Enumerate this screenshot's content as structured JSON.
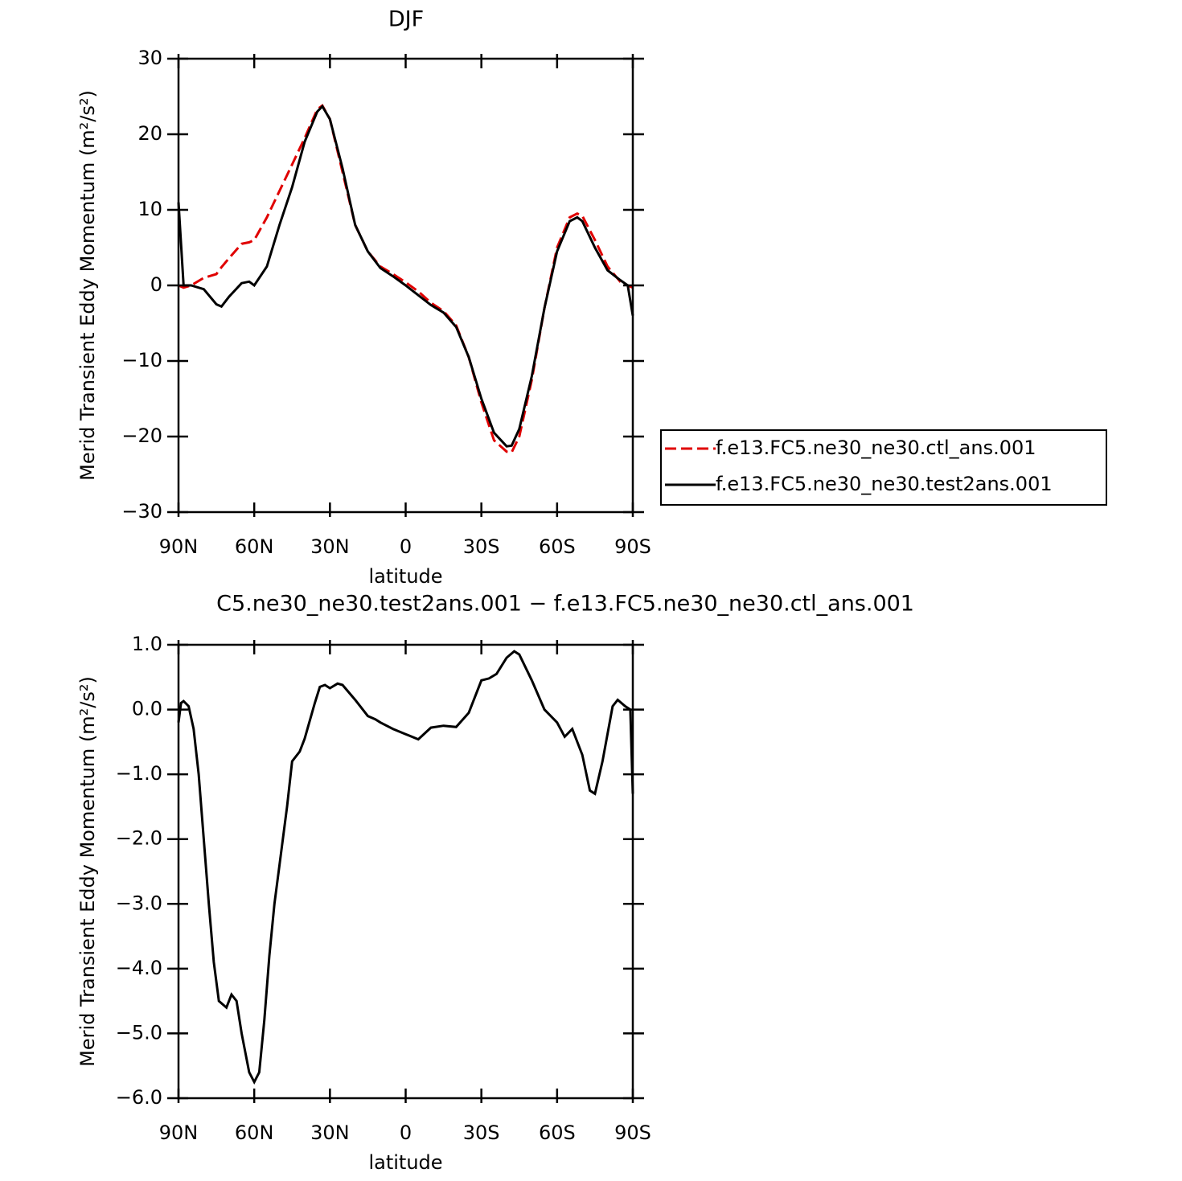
{
  "chart_data": [
    {
      "type": "line",
      "title": "DJF",
      "xlabel": "latitude",
      "ylabel": "Merid Transient Eddy Momentum (m²/s²)",
      "x": [
        90,
        88,
        85,
        80,
        75,
        73,
        70,
        65,
        62,
        60,
        55,
        50,
        45,
        40,
        35,
        33,
        30,
        25,
        20,
        15,
        10,
        5,
        0,
        -5,
        -10,
        -15,
        -20,
        -25,
        -30,
        -35,
        -40,
        -42,
        -45,
        -50,
        -55,
        -60,
        -65,
        -68,
        -70,
        -75,
        -80,
        -85,
        -88,
        -90
      ],
      "series": [
        {
          "name": "f.e13.FC5.ne30_ne30.ctl_ans.001",
          "color": "#e00000",
          "dash": true,
          "values": [
            0,
            -0.3,
            0,
            1,
            1.5,
            2.4,
            3.6,
            5.5,
            5.7,
            6,
            9,
            12.5,
            16,
            19.5,
            23.3,
            23.8,
            22,
            15,
            8,
            4.5,
            2.5,
            1.5,
            0.4,
            -0.8,
            -2.3,
            -3.4,
            -5.3,
            -9.5,
            -15.5,
            -20.5,
            -22,
            -22.1,
            -20,
            -12.5,
            -3,
            5,
            9,
            9.5,
            9.2,
            6,
            2.5,
            0.5,
            0,
            -0.3
          ]
        },
        {
          "name": "f.e13.FC5.ne30_ne30.test2ans.001",
          "color": "#000000",
          "dash": false,
          "values": [
            11,
            0,
            0,
            -0.5,
            -2.5,
            -2.8,
            -1.5,
            0.3,
            0.5,
            0,
            2.5,
            8,
            13,
            19,
            23,
            23.7,
            22,
            15.5,
            8,
            4.5,
            2.3,
            1.2,
            0,
            -1.3,
            -2.6,
            -3.6,
            -5.5,
            -9.5,
            -15,
            -19.5,
            -21.3,
            -21.2,
            -19,
            -12,
            -3,
            4.5,
            8.5,
            9,
            8.5,
            5,
            2,
            0.7,
            0,
            -4
          ]
        }
      ],
      "xlim": [
        90,
        -90
      ],
      "xticks": [
        {
          "value": 90,
          "label": "90N"
        },
        {
          "value": 60,
          "label": "60N"
        },
        {
          "value": 30,
          "label": "30N"
        },
        0,
        {
          "value": -30,
          "label": "30S"
        },
        {
          "value": -60,
          "label": "60S"
        },
        {
          "value": -90,
          "label": "90S"
        }
      ],
      "ylim": [
        -30,
        30
      ],
      "yticks": [
        {
          "value": -30,
          "label": "−30"
        },
        {
          "value": -20,
          "label": "−20"
        },
        {
          "value": -10,
          "label": "−10"
        },
        0,
        10,
        20,
        30
      ],
      "legend": "right"
    },
    {
      "type": "line",
      "title": "C5.ne30_ne30.test2ans.001 − f.e13.FC5.ne30_ne30.ctl_ans.001",
      "xlabel": "latitude",
      "ylabel": "Merid Transient Eddy Momentum (m²/s²)",
      "x": [
        90,
        89,
        88,
        86,
        84,
        82,
        80,
        78,
        76,
        74,
        71,
        69,
        67,
        65,
        62,
        60,
        58,
        56,
        54,
        52,
        50,
        47,
        45,
        42,
        40,
        36,
        34,
        32,
        30,
        27,
        25,
        20,
        15,
        12,
        10,
        5,
        0,
        -5,
        -10,
        -15,
        -20,
        -25,
        -30,
        -33,
        -36,
        -40,
        -43,
        -45,
        -50,
        -55,
        -60,
        -63,
        -66,
        -70,
        -73,
        -75,
        -78,
        -82,
        -84,
        -87,
        -89,
        -90
      ],
      "series": [
        {
          "name": null,
          "color": "#000000",
          "dash": false,
          "values": [
            -0.2,
            0.1,
            0.13,
            0.05,
            -0.3,
            -1.0,
            -2.0,
            -3.0,
            -3.9,
            -4.5,
            -4.6,
            -4.4,
            -4.5,
            -5.0,
            -5.6,
            -5.75,
            -5.6,
            -4.8,
            -3.8,
            -3.0,
            -2.4,
            -1.5,
            -0.8,
            -0.65,
            -0.45,
            0.1,
            0.35,
            0.38,
            0.33,
            0.4,
            0.38,
            0.15,
            -0.1,
            -0.15,
            -0.2,
            -0.3,
            -0.38,
            -0.46,
            -0.28,
            -0.25,
            -0.27,
            -0.05,
            0.45,
            0.48,
            0.55,
            0.8,
            0.9,
            0.85,
            0.45,
            0.0,
            -0.2,
            -0.42,
            -0.3,
            -0.7,
            -1.25,
            -1.3,
            -0.8,
            0.05,
            0.15,
            0.05,
            0,
            -1.3
          ]
        }
      ],
      "xlim": [
        90,
        -90
      ],
      "xticks": [
        {
          "value": 90,
          "label": "90N"
        },
        {
          "value": 60,
          "label": "60N"
        },
        {
          "value": 30,
          "label": "30N"
        },
        0,
        {
          "value": -30,
          "label": "30S"
        },
        {
          "value": -60,
          "label": "60S"
        },
        {
          "value": -90,
          "label": "90S"
        }
      ],
      "ylim": [
        -6,
        1
      ],
      "yticks": [
        {
          "value": -6,
          "label": "−6.0"
        },
        {
          "value": -5,
          "label": "−5.0"
        },
        {
          "value": -4,
          "label": "−4.0"
        },
        {
          "value": -3,
          "label": "−3.0"
        },
        {
          "value": -2,
          "label": "−2.0"
        },
        {
          "value": -1,
          "label": "−1.0"
        },
        {
          "value": 0,
          "label": "0.0"
        },
        {
          "value": 1,
          "label": "1.0"
        }
      ]
    }
  ]
}
